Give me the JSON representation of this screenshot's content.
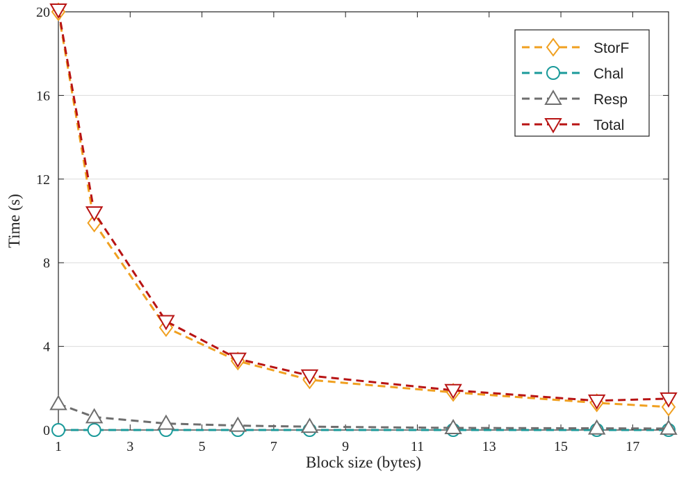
{
  "chart_data": {
    "type": "line",
    "title": "",
    "xlabel": "Block size (bytes)",
    "ylabel": "Time (s)",
    "xlim": [
      1,
      18
    ],
    "ylim": [
      0,
      20
    ],
    "xticks": [
      1,
      3,
      5,
      7,
      9,
      11,
      13,
      15,
      17
    ],
    "yticks": [
      0,
      4,
      8,
      12,
      16,
      20
    ],
    "grid": "horizontal",
    "legend_position": "top-right",
    "x": [
      1,
      2,
      4,
      6,
      8,
      12,
      16,
      18
    ],
    "series": [
      {
        "name": "StorF",
        "color": "#f0a020",
        "marker": "diamond",
        "values": [
          20.0,
          9.9,
          4.9,
          3.3,
          2.4,
          1.8,
          1.3,
          1.1
        ]
      },
      {
        "name": "Chal",
        "color": "#1a9a9a",
        "marker": "circle",
        "values": [
          0.0,
          0.0,
          0.0,
          0.0,
          0.0,
          0.0,
          0.0,
          0.0
        ]
      },
      {
        "name": "Resp",
        "color": "#6e6e6e",
        "marker": "triangle-up",
        "values": [
          1.25,
          0.62,
          0.31,
          0.21,
          0.16,
          0.1,
          0.08,
          0.07
        ]
      },
      {
        "name": "Total",
        "color": "#b81414",
        "marker": "triangle-down",
        "values": [
          20.1,
          10.4,
          5.2,
          3.4,
          2.6,
          1.9,
          1.4,
          1.5
        ]
      }
    ]
  }
}
